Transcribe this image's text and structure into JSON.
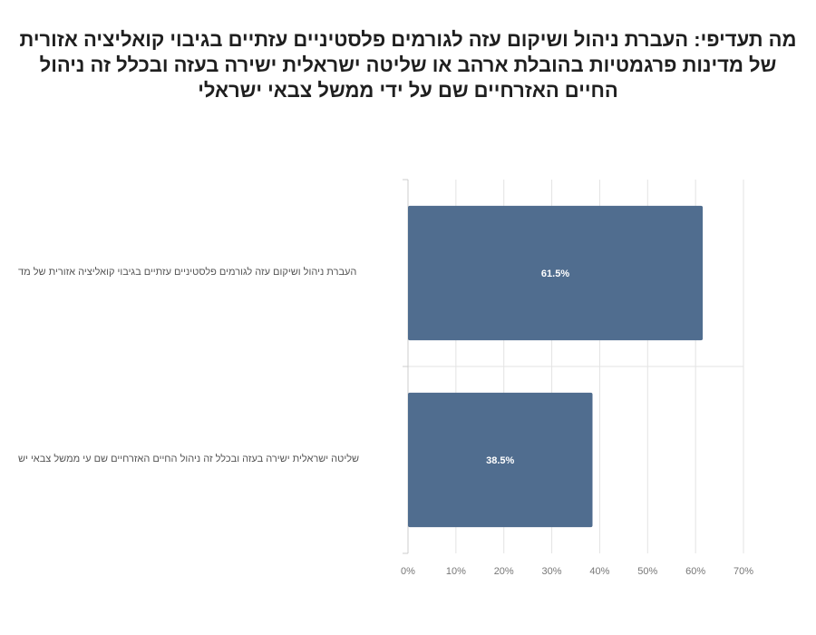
{
  "title": "מה תעדיפי: העברת ניהול ושיקום עזה לגורמים פלסטיניים עזתיים בגיבוי קואליציה אזורית של מדינות פרגמטיות בהובלת ארהב או שליטה ישראלית ישירה בעזה ובכלל זה ניהול החיים האזרחיים שם על ידי ממשל צבאי ישראלי",
  "colors": {
    "bar": "#506d8f",
    "grid": "#e3e3e3",
    "axis": "#cccccc"
  },
  "chart_data": {
    "type": "bar",
    "orientation": "horizontal",
    "categories": [
      "העברת ניהול ושיקום עזה לגורמים פלסטיניים עזתיים בגיבוי קואליציה אזורית של מד",
      "שליטה ישראלית ישירה בעזה ובכלל זה ניהול החיים האזרחיים שם עי ממשל צבאי יש"
    ],
    "values": [
      61.5,
      38.5
    ],
    "data_labels": [
      "61.5%",
      "38.5%"
    ],
    "x_ticks": [
      "0%",
      "10%",
      "20%",
      "30%",
      "40%",
      "50%",
      "60%",
      "70%"
    ],
    "xlim": [
      0,
      70
    ],
    "grid": true,
    "legend": "none"
  }
}
